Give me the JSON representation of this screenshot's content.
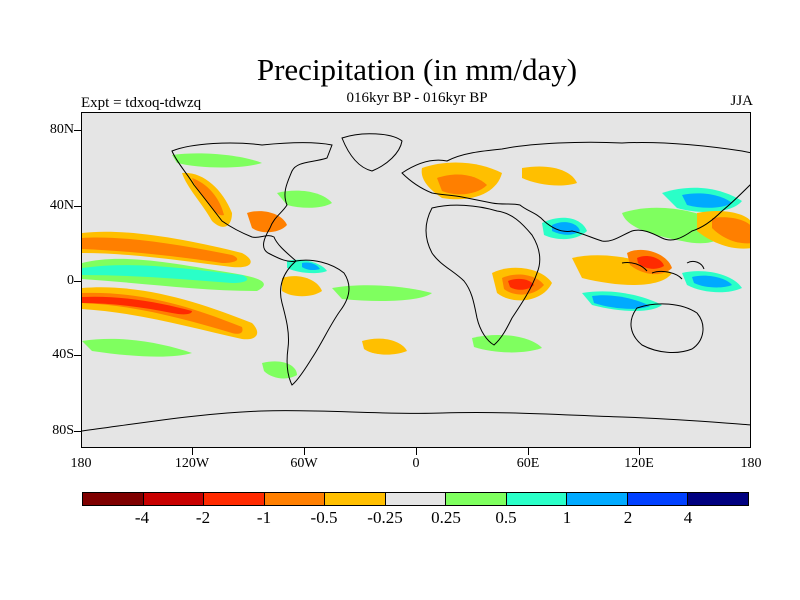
{
  "figure": {
    "title": "Precipitation (in mm/day)",
    "subtitle": "016kyr BP - 016kyr BP",
    "left_label": "Expt = tdxoq-tdwzq",
    "right_label": "JJA"
  },
  "axes": {
    "lat_ticks": [
      "80N",
      "40N",
      "0",
      "40S",
      "80S"
    ],
    "lon_ticks": [
      "180",
      "120W",
      "60W",
      "0",
      "60E",
      "120E",
      "180"
    ]
  },
  "colorbar": {
    "colors": [
      "#7f0000",
      "#c80000",
      "#ff2a00",
      "#ff7f00",
      "#ffbf00",
      "#e5e5e5",
      "#7fff5f",
      "#2affc8",
      "#00aaff",
      "#0040ff",
      "#000080"
    ],
    "labels": [
      "-4",
      "-2",
      "-1",
      "-0.5",
      "-0.25",
      "0.25",
      "0.5",
      "1",
      "2",
      "4"
    ]
  },
  "map": {
    "background": "#e5e5e5",
    "coastline_color": "#000000"
  }
}
